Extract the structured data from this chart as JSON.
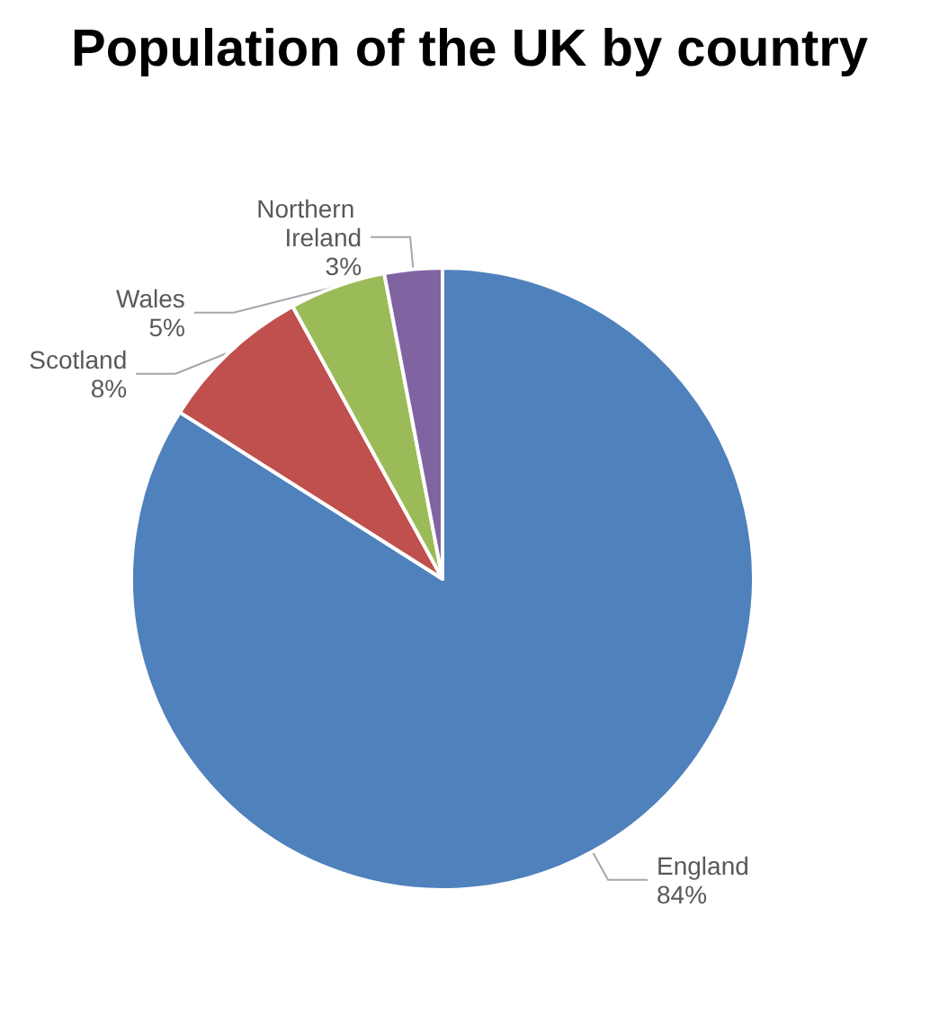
{
  "chart_data": {
    "type": "pie",
    "title": "Population of the UK by country",
    "categories": [
      "England",
      "Scotland",
      "Wales",
      "Northern Ireland"
    ],
    "values": [
      84,
      8,
      5,
      3
    ],
    "value_labels": [
      "84%",
      "8%",
      "5%",
      "3%"
    ],
    "colors": [
      "#4f81bd",
      "#c0504d",
      "#9bbb59",
      "#8064a2"
    ],
    "legend": false
  }
}
